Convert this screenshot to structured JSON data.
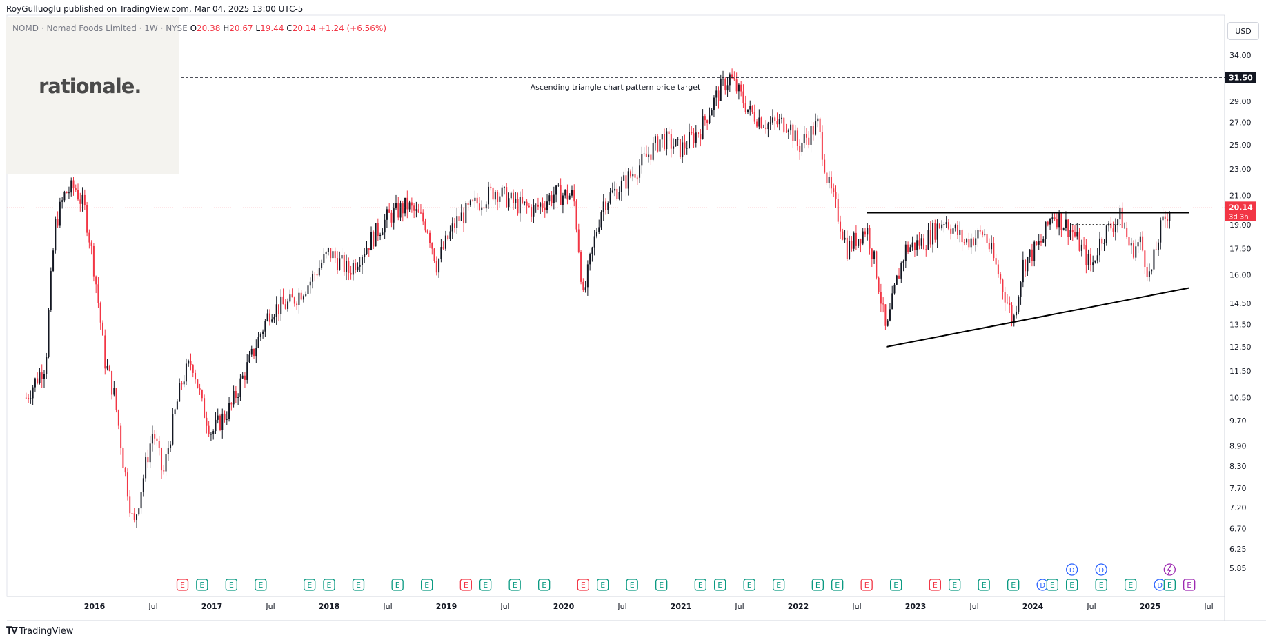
{
  "header": {
    "publisher": "RoyGulluoglu published on TradingView.com, Mar 04, 2025 13:00 UTC-5"
  },
  "legend": {
    "symbol": "NOMD · Nomad Foods Limited · 1W · NYSE",
    "o_label": "O",
    "o_value": "20.38",
    "h_label": "H",
    "h_value": "20.67",
    "l_label": "L",
    "l_value": "19.44",
    "c_label": "C",
    "c_value": "20.14",
    "change": "+1.24 (+6.56%)"
  },
  "logo": {
    "text": "rationale."
  },
  "currency_button": "USD",
  "footer": {
    "brand": "TradingView"
  },
  "colors": {
    "up": "#131722",
    "down": "#f23645",
    "earnings": "#089981",
    "earnings_neg": "#f23645",
    "dividend": "#2962ff",
    "split": "#9c27b0",
    "price_line": "#f23645"
  },
  "chart_data": {
    "type": "candlestick",
    "symbol": "NOMD",
    "interval": "1W",
    "y_scale": "log",
    "ylim": [
      5.5,
      36.5
    ],
    "x_range": [
      "2015-06",
      "2025-08"
    ],
    "y_ticks": [
      "34.00",
      "29.00",
      "27.00",
      "25.00",
      "23.00",
      "21.00",
      "19.00",
      "17.50",
      "16.00",
      "14.50",
      "13.50",
      "12.50",
      "11.50",
      "10.50",
      "9.70",
      "8.90",
      "8.30",
      "7.70",
      "7.20",
      "6.70",
      "6.25",
      "5.85"
    ],
    "x_ticks": [
      "2016",
      "Jul",
      "2017",
      "Jul",
      "2018",
      "Jul",
      "2019",
      "Jul",
      "2020",
      "Jul",
      "2021",
      "Jul",
      "2022",
      "Jul",
      "2023",
      "Jul",
      "2024",
      "Jul",
      "2025",
      "Jul"
    ],
    "x_tick_dates": [
      "2016-01",
      "2016-07",
      "2017-01",
      "2017-07",
      "2018-01",
      "2018-07",
      "2019-01",
      "2019-07",
      "2020-01",
      "2020-07",
      "2021-01",
      "2021-07",
      "2022-01",
      "2022-07",
      "2023-01",
      "2023-07",
      "2024-01",
      "2024-07",
      "2025-01",
      "2025-07"
    ],
    "price_path": [
      [
        "2015-06",
        10.5
      ],
      [
        "2015-08",
        11.8
      ],
      [
        "2015-09",
        19.0
      ],
      [
        "2015-10",
        21.2
      ],
      [
        "2015-11",
        21.6
      ],
      [
        "2015-12",
        20.0
      ],
      [
        "2016-01",
        16.2
      ],
      [
        "2016-02",
        12.0
      ],
      [
        "2016-03",
        10.6
      ],
      [
        "2016-04",
        8.3
      ],
      [
        "2016-05",
        6.7
      ],
      [
        "2016-06",
        8.0
      ],
      [
        "2016-07",
        9.4
      ],
      [
        "2016-08",
        8.0
      ],
      [
        "2016-09",
        9.6
      ],
      [
        "2016-10",
        11.2
      ],
      [
        "2016-11",
        11.9
      ],
      [
        "2016-12",
        10.2
      ],
      [
        "2017-01",
        9.3
      ],
      [
        "2017-03",
        10.2
      ],
      [
        "2017-05",
        12.0
      ],
      [
        "2017-07",
        14.2
      ],
      [
        "2017-09",
        14.5
      ],
      [
        "2017-11",
        15.6
      ],
      [
        "2018-01",
        17.3
      ],
      [
        "2018-03",
        16.2
      ],
      [
        "2018-05",
        17.8
      ],
      [
        "2018-07",
        19.5
      ],
      [
        "2018-09",
        20.3
      ],
      [
        "2018-11",
        19.0
      ],
      [
        "2018-12",
        16.6
      ],
      [
        "2019-02",
        19.2
      ],
      [
        "2019-04",
        20.4
      ],
      [
        "2019-06",
        21.4
      ],
      [
        "2019-08",
        20.4
      ],
      [
        "2019-10",
        20.0
      ],
      [
        "2019-12",
        21.1
      ],
      [
        "2020-02",
        21.0
      ],
      [
        "2020-03",
        14.7
      ],
      [
        "2020-05",
        20.5
      ],
      [
        "2020-07",
        21.8
      ],
      [
        "2020-09",
        23.5
      ],
      [
        "2020-11",
        25.6
      ],
      [
        "2021-01",
        24.6
      ],
      [
        "2021-03",
        26.4
      ],
      [
        "2021-05",
        30.2
      ],
      [
        "2021-06",
        31.5
      ],
      [
        "2021-08",
        28.0
      ],
      [
        "2021-10",
        26.8
      ],
      [
        "2021-12",
        27.0
      ],
      [
        "2022-01",
        24.8
      ],
      [
        "2022-03",
        26.8
      ],
      [
        "2022-04",
        22.0
      ],
      [
        "2022-05",
        19.8
      ],
      [
        "2022-06",
        17.5
      ],
      [
        "2022-08",
        18.8
      ],
      [
        "2022-09",
        16.2
      ],
      [
        "2022-10",
        13.0
      ],
      [
        "2022-11",
        15.5
      ],
      [
        "2022-12",
        17.5
      ],
      [
        "2023-02",
        18.0
      ],
      [
        "2023-04",
        19.4
      ],
      [
        "2023-06",
        17.9
      ],
      [
        "2023-08",
        18.5
      ],
      [
        "2023-10",
        15.2
      ],
      [
        "2023-11",
        13.6
      ],
      [
        "2023-12",
        16.6
      ],
      [
        "2024-02",
        18.0
      ],
      [
        "2024-03",
        19.8
      ],
      [
        "2024-05",
        18.6
      ],
      [
        "2024-07",
        16.4
      ],
      [
        "2024-08",
        18.2
      ],
      [
        "2024-10",
        19.6
      ],
      [
        "2024-11",
        17.4
      ],
      [
        "2024-12",
        17.9
      ],
      [
        "2025-01",
        15.8
      ],
      [
        "2025-02",
        18.6
      ],
      [
        "2025-03",
        20.14
      ]
    ],
    "last_price": "20.14",
    "countdown": "3d 3h",
    "annotations": [
      {
        "type": "hline",
        "style": "dashed",
        "value": 31.5,
        "label": "31.50"
      },
      {
        "type": "text",
        "text": "Ascending triangle chart pattern price target"
      },
      {
        "type": "hline",
        "style": "solid",
        "value": 19.8,
        "from": "2022-08",
        "to": "2025-05"
      },
      {
        "type": "trendline",
        "points": [
          [
            "2022-10",
            12.5
          ],
          [
            "2025-05",
            15.3
          ]
        ]
      },
      {
        "type": "hline",
        "style": "dotted",
        "value": 19.0,
        "from": "2024-05",
        "to": "2024-10"
      }
    ],
    "events": [
      {
        "d": "2016-10",
        "t": "E",
        "neg": true
      },
      {
        "d": "2016-12",
        "t": "E"
      },
      {
        "d": "2017-03",
        "t": "E"
      },
      {
        "d": "2017-06",
        "t": "E"
      },
      {
        "d": "2017-11",
        "t": "E"
      },
      {
        "d": "2018-01",
        "t": "E"
      },
      {
        "d": "2018-04",
        "t": "E"
      },
      {
        "d": "2018-08",
        "t": "E"
      },
      {
        "d": "2018-11",
        "t": "E"
      },
      {
        "d": "2019-03",
        "t": "E",
        "neg": true
      },
      {
        "d": "2019-05",
        "t": "E"
      },
      {
        "d": "2019-08",
        "t": "E"
      },
      {
        "d": "2019-11",
        "t": "E"
      },
      {
        "d": "2020-03",
        "t": "E",
        "neg": true
      },
      {
        "d": "2020-05",
        "t": "E"
      },
      {
        "d": "2020-08",
        "t": "E"
      },
      {
        "d": "2020-11",
        "t": "E"
      },
      {
        "d": "2021-03",
        "t": "E"
      },
      {
        "d": "2021-05",
        "t": "E"
      },
      {
        "d": "2021-08",
        "t": "E"
      },
      {
        "d": "2021-11",
        "t": "E"
      },
      {
        "d": "2022-03",
        "t": "E"
      },
      {
        "d": "2022-05",
        "t": "E"
      },
      {
        "d": "2022-08",
        "t": "E",
        "neg": true
      },
      {
        "d": "2022-11",
        "t": "E"
      },
      {
        "d": "2023-03",
        "t": "E",
        "neg": true
      },
      {
        "d": "2023-05",
        "t": "E"
      },
      {
        "d": "2023-08",
        "t": "E"
      },
      {
        "d": "2023-11",
        "t": "E"
      },
      {
        "d": "2024-02",
        "t": "D"
      },
      {
        "d": "2024-03",
        "t": "E"
      },
      {
        "d": "2024-05",
        "t": "E"
      },
      {
        "d": "2024-05",
        "t": "D",
        "row": 2
      },
      {
        "d": "2024-08",
        "t": "E"
      },
      {
        "d": "2024-08",
        "t": "D",
        "row": 2
      },
      {
        "d": "2024-11",
        "t": "E"
      },
      {
        "d": "2025-02",
        "t": "D"
      },
      {
        "d": "2025-03",
        "t": "E"
      },
      {
        "d": "2025-03",
        "t": "S",
        "row": 2
      },
      {
        "d": "2025-05",
        "t": "E",
        "future": true
      }
    ]
  }
}
